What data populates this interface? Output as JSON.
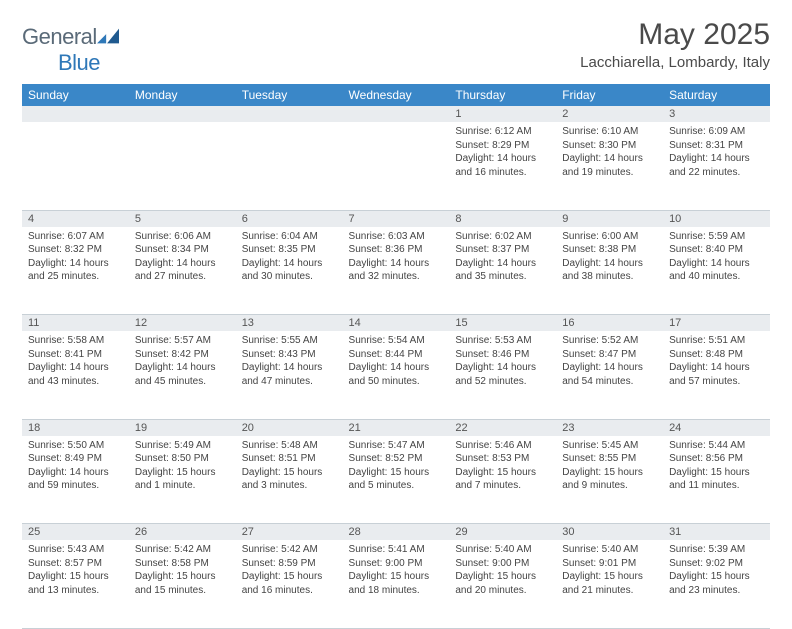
{
  "logo": {
    "part1": "General",
    "part2": "Blue"
  },
  "title": "May 2025",
  "location": "Lacchiarella, Lombardy, Italy",
  "colors": {
    "header_bg": "#3a87c8",
    "header_text": "#ffffff",
    "daynum_bg": "#e9ecef",
    "text": "#444444",
    "logo_gray": "#5a6a78",
    "logo_blue": "#2f78b8",
    "divider": "#c8d0d6"
  },
  "day_headers": [
    "Sunday",
    "Monday",
    "Tuesday",
    "Wednesday",
    "Thursday",
    "Friday",
    "Saturday"
  ],
  "weeks": [
    [
      null,
      null,
      null,
      null,
      {
        "n": "1",
        "sr": "6:12 AM",
        "ss": "8:29 PM",
        "dl": "14 hours and 16 minutes."
      },
      {
        "n": "2",
        "sr": "6:10 AM",
        "ss": "8:30 PM",
        "dl": "14 hours and 19 minutes."
      },
      {
        "n": "3",
        "sr": "6:09 AM",
        "ss": "8:31 PM",
        "dl": "14 hours and 22 minutes."
      }
    ],
    [
      {
        "n": "4",
        "sr": "6:07 AM",
        "ss": "8:32 PM",
        "dl": "14 hours and 25 minutes."
      },
      {
        "n": "5",
        "sr": "6:06 AM",
        "ss": "8:34 PM",
        "dl": "14 hours and 27 minutes."
      },
      {
        "n": "6",
        "sr": "6:04 AM",
        "ss": "8:35 PM",
        "dl": "14 hours and 30 minutes."
      },
      {
        "n": "7",
        "sr": "6:03 AM",
        "ss": "8:36 PM",
        "dl": "14 hours and 32 minutes."
      },
      {
        "n": "8",
        "sr": "6:02 AM",
        "ss": "8:37 PM",
        "dl": "14 hours and 35 minutes."
      },
      {
        "n": "9",
        "sr": "6:00 AM",
        "ss": "8:38 PM",
        "dl": "14 hours and 38 minutes."
      },
      {
        "n": "10",
        "sr": "5:59 AM",
        "ss": "8:40 PM",
        "dl": "14 hours and 40 minutes."
      }
    ],
    [
      {
        "n": "11",
        "sr": "5:58 AM",
        "ss": "8:41 PM",
        "dl": "14 hours and 43 minutes."
      },
      {
        "n": "12",
        "sr": "5:57 AM",
        "ss": "8:42 PM",
        "dl": "14 hours and 45 minutes."
      },
      {
        "n": "13",
        "sr": "5:55 AM",
        "ss": "8:43 PM",
        "dl": "14 hours and 47 minutes."
      },
      {
        "n": "14",
        "sr": "5:54 AM",
        "ss": "8:44 PM",
        "dl": "14 hours and 50 minutes."
      },
      {
        "n": "15",
        "sr": "5:53 AM",
        "ss": "8:46 PM",
        "dl": "14 hours and 52 minutes."
      },
      {
        "n": "16",
        "sr": "5:52 AM",
        "ss": "8:47 PM",
        "dl": "14 hours and 54 minutes."
      },
      {
        "n": "17",
        "sr": "5:51 AM",
        "ss": "8:48 PM",
        "dl": "14 hours and 57 minutes."
      }
    ],
    [
      {
        "n": "18",
        "sr": "5:50 AM",
        "ss": "8:49 PM",
        "dl": "14 hours and 59 minutes."
      },
      {
        "n": "19",
        "sr": "5:49 AM",
        "ss": "8:50 PM",
        "dl": "15 hours and 1 minute."
      },
      {
        "n": "20",
        "sr": "5:48 AM",
        "ss": "8:51 PM",
        "dl": "15 hours and 3 minutes."
      },
      {
        "n": "21",
        "sr": "5:47 AM",
        "ss": "8:52 PM",
        "dl": "15 hours and 5 minutes."
      },
      {
        "n": "22",
        "sr": "5:46 AM",
        "ss": "8:53 PM",
        "dl": "15 hours and 7 minutes."
      },
      {
        "n": "23",
        "sr": "5:45 AM",
        "ss": "8:55 PM",
        "dl": "15 hours and 9 minutes."
      },
      {
        "n": "24",
        "sr": "5:44 AM",
        "ss": "8:56 PM",
        "dl": "15 hours and 11 minutes."
      }
    ],
    [
      {
        "n": "25",
        "sr": "5:43 AM",
        "ss": "8:57 PM",
        "dl": "15 hours and 13 minutes."
      },
      {
        "n": "26",
        "sr": "5:42 AM",
        "ss": "8:58 PM",
        "dl": "15 hours and 15 minutes."
      },
      {
        "n": "27",
        "sr": "5:42 AM",
        "ss": "8:59 PM",
        "dl": "15 hours and 16 minutes."
      },
      {
        "n": "28",
        "sr": "5:41 AM",
        "ss": "9:00 PM",
        "dl": "15 hours and 18 minutes."
      },
      {
        "n": "29",
        "sr": "5:40 AM",
        "ss": "9:00 PM",
        "dl": "15 hours and 20 minutes."
      },
      {
        "n": "30",
        "sr": "5:40 AM",
        "ss": "9:01 PM",
        "dl": "15 hours and 21 minutes."
      },
      {
        "n": "31",
        "sr": "5:39 AM",
        "ss": "9:02 PM",
        "dl": "15 hours and 23 minutes."
      }
    ]
  ],
  "labels": {
    "sunrise": "Sunrise:",
    "sunset": "Sunset:",
    "daylight": "Daylight:"
  }
}
